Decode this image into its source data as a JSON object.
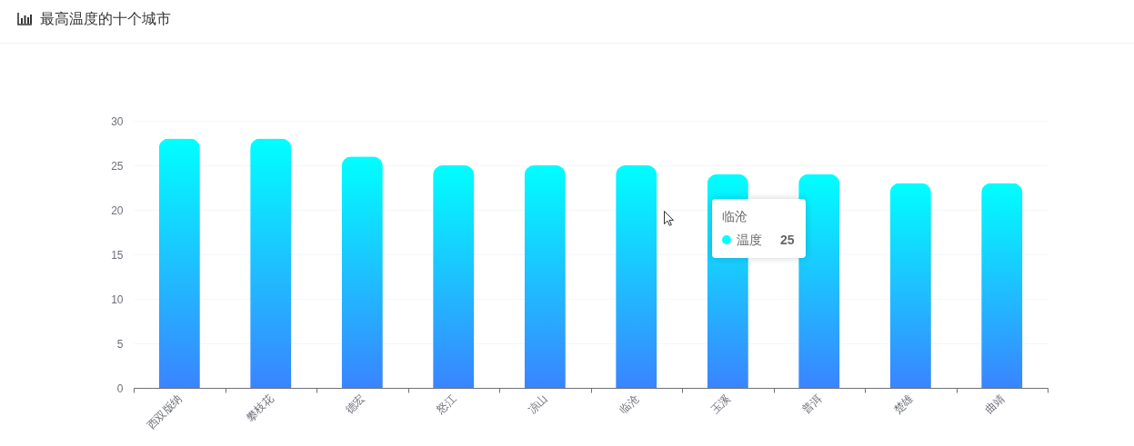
{
  "chart_data": {
    "type": "bar",
    "title": "最高温度的十个城市",
    "categories": [
      "西双版纳",
      "攀枝花",
      "德宏",
      "怒江",
      "凉山",
      "临沧",
      "玉溪",
      "普洱",
      "楚雄",
      "曲靖"
    ],
    "series": [
      {
        "name": "温度",
        "color": "#00ffff",
        "values": [
          28,
          28,
          26,
          25,
          25,
          25,
          24,
          24,
          23,
          23
        ]
      }
    ],
    "ylim": [
      0,
      30
    ],
    "yticks": [
      0,
      5,
      10,
      15,
      20,
      25,
      30
    ],
    "grid": "y",
    "annotations": [
      "临沧",
      "25"
    ]
  }
}
